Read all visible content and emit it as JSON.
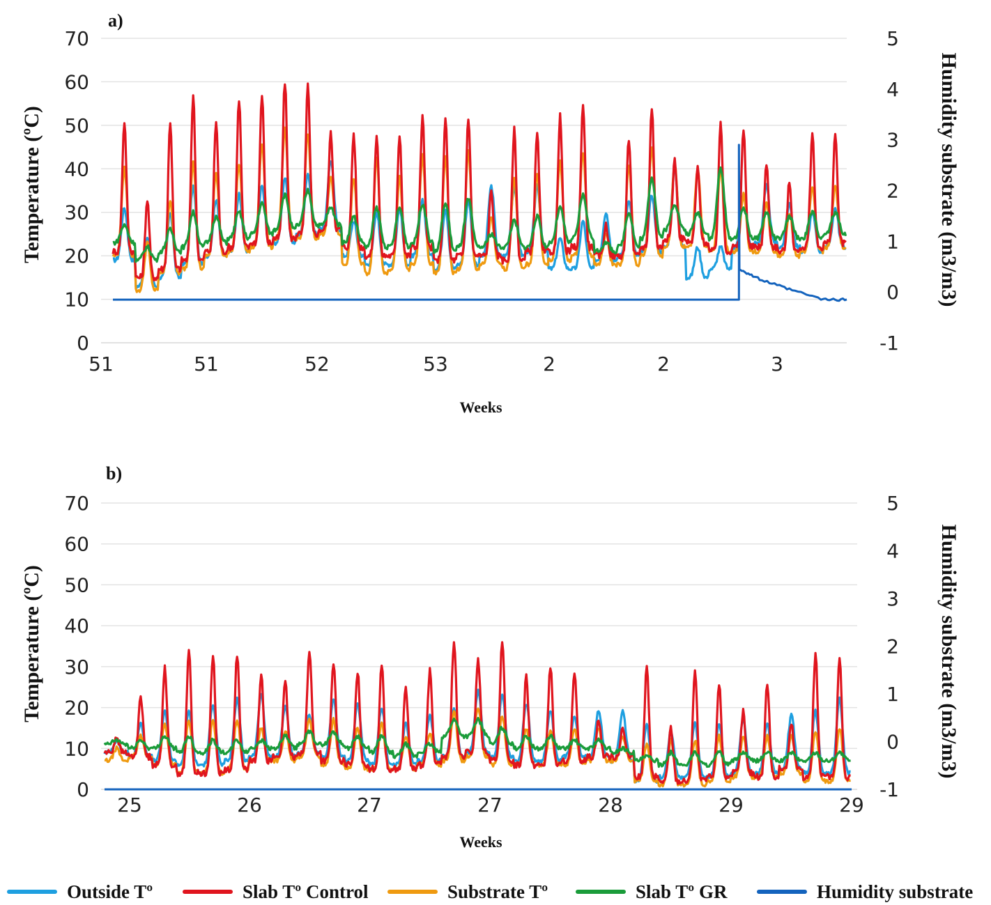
{
  "legend": [
    {
      "name": "Outside Tº",
      "color": "#1e9fe0"
    },
    {
      "name": "Slab Tº Control",
      "color": "#e0151e"
    },
    {
      "name": "Substrate Tº",
      "color": "#ef9a10"
    },
    {
      "name": "Slab Tº GR",
      "color": "#1a9c3a"
    },
    {
      "name": "Humidity substrate",
      "color": "#1463bd"
    }
  ],
  "chart_data": [
    {
      "type": "line",
      "panel_label": "a)",
      "xlabel": "Weeks",
      "ylabel": "Temperature (ºC)",
      "y2label": "Humidity substrate (m3/m3)",
      "x_tick_labels": [
        "51",
        "51",
        "52",
        "53",
        "2",
        "2",
        "3"
      ],
      "ylim": [
        0,
        70
      ],
      "y_ticks": [
        0,
        10,
        20,
        30,
        40,
        50,
        60,
        70
      ],
      "y2lim": [
        -1,
        5
      ],
      "y2_ticks": [
        -1,
        0,
        1,
        2,
        3,
        4,
        5
      ],
      "grid": true,
      "legend_position": "bottom",
      "days": 32,
      "series": [
        {
          "name": "Outside Tº",
          "color": "#1e9fe0",
          "daily_max": [
            31,
            24,
            30,
            36,
            33,
            34,
            36,
            38,
            39,
            42,
            28,
            30,
            31,
            33,
            31,
            33,
            36,
            36,
            36,
            24,
            28,
            30,
            33,
            34,
            40,
            22,
            22,
            34,
            36,
            32,
            30,
            31
          ],
          "daily_min": [
            19,
            13,
            15,
            18,
            20,
            21,
            22,
            23,
            25,
            26,
            20,
            18,
            18,
            20,
            17,
            18,
            20,
            20,
            21,
            17,
            17,
            19,
            20,
            21,
            22,
            15,
            17,
            22,
            23,
            22,
            21,
            22
          ]
        },
        {
          "name": "Slab Tº Control",
          "color": "#e0151e",
          "daily_max": [
            51,
            33,
            51,
            57,
            51,
            56,
            57,
            60,
            59,
            48,
            48,
            48,
            48,
            52,
            52,
            52,
            35,
            49,
            48,
            52,
            55,
            27,
            47,
            54,
            42,
            40,
            50,
            49,
            41,
            37,
            48,
            48
          ],
          "daily_min": [
            21,
            15,
            17,
            19,
            21,
            22,
            23,
            24,
            25,
            26,
            22,
            20,
            20,
            22,
            19,
            20,
            20,
            19,
            21,
            21,
            22,
            20,
            20,
            22,
            24,
            23,
            21,
            22,
            22,
            21,
            22,
            23
          ]
        },
        {
          "name": "Substrate Tº",
          "color": "#ef9a10",
          "daily_max": [
            40,
            23,
            33,
            42,
            39,
            41,
            46,
            49,
            48,
            38,
            38,
            43,
            38,
            43,
            43,
            44,
            29,
            38,
            39,
            42,
            44,
            25,
            41,
            45,
            41,
            40,
            40,
            34,
            32,
            30,
            36,
            36
          ],
          "daily_min": [
            20,
            12,
            16,
            17,
            20,
            21,
            22,
            24,
            24,
            25,
            18,
            16,
            17,
            18,
            16,
            17,
            18,
            17,
            18,
            19,
            20,
            18,
            18,
            20,
            22,
            22,
            21,
            21,
            21,
            20,
            21,
            22
          ]
        },
        {
          "name": "Slab Tº GR",
          "color": "#1a9c3a",
          "daily_max": [
            27,
            22,
            26,
            30,
            29,
            30,
            32,
            34,
            35,
            31,
            29,
            31,
            31,
            32,
            32,
            33,
            25,
            28,
            29,
            31,
            34,
            23,
            30,
            38,
            32,
            30,
            40,
            31,
            30,
            29,
            30,
            30
          ],
          "daily_min": [
            23,
            19,
            21,
            22,
            23,
            24,
            25,
            26,
            27,
            27,
            23,
            22,
            22,
            23,
            21,
            22,
            22,
            22,
            22,
            23,
            24,
            21,
            22,
            24,
            26,
            25,
            24,
            24,
            24,
            24,
            24,
            25
          ]
        },
        {
          "name": "Humidity substrate",
          "color": "#1463bd",
          "baseline": -0.15,
          "spike_day": 27.3,
          "spike_peak": 2.9,
          "after": [
            [
              27.35,
              0.45
            ],
            [
              28.2,
              0.25
            ],
            [
              29.5,
              0.05
            ],
            [
              31.0,
              -0.15
            ],
            [
              32.0,
              -0.15
            ]
          ]
        }
      ]
    },
    {
      "type": "line",
      "panel_label": "b)",
      "xlabel": "Weeks",
      "ylabel": "Temperature (ºC)",
      "y2label": "Humidity substrate (m3/m3)",
      "x_tick_labels": [
        "25",
        "26",
        "27",
        "27",
        "28",
        "29",
        "29"
      ],
      "ylim": [
        0,
        70
      ],
      "y_ticks": [
        0,
        10,
        20,
        30,
        40,
        50,
        60,
        70
      ],
      "y2lim": [
        -1,
        5
      ],
      "y2_ticks": [
        -1,
        0,
        1,
        2,
        3,
        4,
        5
      ],
      "grid": true,
      "legend_position": "bottom",
      "days": 31,
      "series": [
        {
          "name": "Outside Tº",
          "color": "#1e9fe0",
          "daily_max": [
            12,
            16,
            19,
            19,
            21,
            22,
            23,
            20,
            18,
            22,
            21,
            20,
            16,
            18,
            20,
            24,
            23,
            21,
            19,
            18,
            19,
            19,
            16,
            14,
            16,
            16,
            17,
            16,
            18,
            19,
            22
          ],
          "daily_min": [
            9,
            8,
            7,
            6,
            6,
            7,
            8,
            8,
            9,
            8,
            7,
            6,
            6,
            7,
            8,
            9,
            8,
            7,
            7,
            8,
            8,
            7,
            2,
            3,
            3,
            3,
            4,
            4,
            5,
            4,
            4
          ]
        },
        {
          "name": "Slab Tº Control",
          "color": "#e0151e",
          "daily_max": [
            13,
            23,
            30,
            34,
            33,
            33,
            28,
            26,
            34,
            31,
            29,
            31,
            25,
            29,
            36,
            32,
            36,
            28,
            30,
            28,
            17,
            15,
            30,
            15,
            29,
            26,
            19,
            26,
            16,
            33,
            32
          ],
          "daily_min": [
            9,
            8,
            6,
            4,
            4,
            5,
            7,
            8,
            9,
            7,
            6,
            5,
            5,
            6,
            8,
            9,
            7,
            6,
            6,
            7,
            8,
            8,
            3,
            2,
            2,
            3,
            4,
            3,
            5,
            3,
            3
          ]
        },
        {
          "name": "Substrate Tº",
          "color": "#ef9a10",
          "daily_max": [
            10,
            13,
            16,
            17,
            17,
            17,
            15,
            14,
            17,
            17,
            15,
            16,
            13,
            14,
            19,
            20,
            18,
            15,
            14,
            15,
            15,
            13,
            11,
            12,
            12,
            13,
            13,
            13,
            13,
            14,
            15
          ],
          "daily_min": [
            7,
            8,
            6,
            4,
            4,
            5,
            7,
            7,
            8,
            6,
            5,
            5,
            5,
            6,
            7,
            8,
            6,
            6,
            6,
            6,
            7,
            7,
            2,
            1,
            1,
            2,
            3,
            3,
            4,
            2,
            2
          ]
        },
        {
          "name": "Slab Tº GR",
          "color": "#1a9c3a",
          "daily_max": [
            12,
            12,
            13,
            13,
            12,
            12,
            12,
            13,
            14,
            14,
            13,
            13,
            11,
            11,
            17,
            17,
            15,
            13,
            13,
            12,
            12,
            10,
            8,
            9,
            9,
            9,
            9,
            9,
            9,
            9,
            9
          ],
          "daily_min": [
            11,
            10,
            10,
            9,
            9,
            9,
            10,
            10,
            11,
            11,
            10,
            9,
            8,
            9,
            13,
            13,
            11,
            10,
            10,
            10,
            10,
            9,
            7,
            6,
            6,
            6,
            7,
            7,
            7,
            7,
            7
          ]
        },
        {
          "name": "Humidity substrate",
          "color": "#1463bd",
          "baseline": -1
        }
      ]
    }
  ]
}
